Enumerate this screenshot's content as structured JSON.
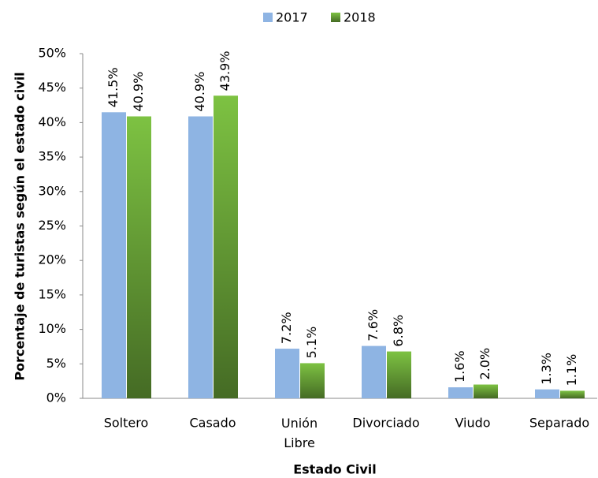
{
  "chart_data": {
    "type": "bar",
    "categories": [
      "Soltero",
      "Casado",
      "Unión Libre",
      "Divorciado",
      "Viudo",
      "Separado"
    ],
    "series": [
      {
        "name": "2017",
        "color": "#8eb4e3",
        "values": [
          41.5,
          40.9,
          7.2,
          7.6,
          1.6,
          1.3
        ],
        "value_labels": [
          "41.5%",
          "40.9%",
          "7.2%",
          "7.6%",
          "1.6%",
          "1.3%"
        ]
      },
      {
        "name": "2018",
        "color": "#7dc242",
        "values": [
          40.9,
          43.9,
          5.1,
          6.8,
          2.0,
          1.1
        ],
        "value_labels": [
          "40.9%",
          "43.9%",
          "5.1%",
          "6.8%",
          "2.0%",
          "1.1%"
        ]
      }
    ],
    "xlabel": "Estado Civil",
    "ylabel": "Porcentaje de turistas según el estado civil",
    "ylim": [
      0,
      50
    ],
    "yticks": [
      {
        "value": 0,
        "label": "0%"
      },
      {
        "value": 5,
        "label": "5%"
      },
      {
        "value": 10,
        "label": "10%"
      },
      {
        "value": 15,
        "label": "15%"
      },
      {
        "value": 20,
        "label": "20%"
      },
      {
        "value": 25,
        "label": "25%"
      },
      {
        "value": 30,
        "label": "30%"
      },
      {
        "value": 35,
        "label": "35%"
      },
      {
        "value": 40,
        "label": "40%"
      },
      {
        "value": 45,
        "label": "45%"
      },
      {
        "value": 50,
        "label": "50%"
      }
    ],
    "grid": false,
    "legend": "top"
  }
}
